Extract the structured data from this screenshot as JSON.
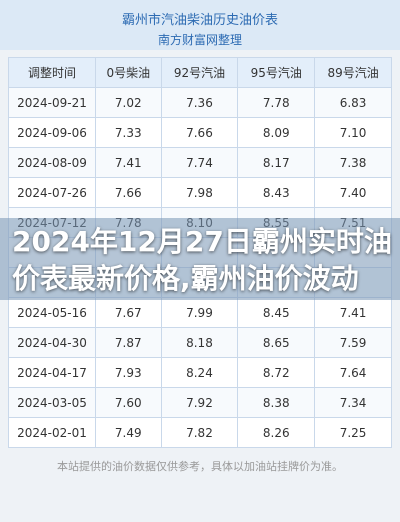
{
  "header": {
    "title": "霸州市汽油柴油历史油价表",
    "subtitle": "南方财富网整理"
  },
  "table": {
    "columns": [
      "调整时间",
      "0号柴油",
      "92号汽油",
      "95号汽油",
      "89号汽油"
    ],
    "rows_top": [
      [
        "2024-09-21",
        "7.02",
        "7.36",
        "7.78",
        "6.83"
      ],
      [
        "2024-09-06",
        "7.33",
        "7.66",
        "8.09",
        "7.10"
      ],
      [
        "2024-08-09",
        "7.41",
        "7.74",
        "8.17",
        "7.38"
      ],
      [
        "2024-07-26",
        "7.66",
        "7.98",
        "8.43",
        "7.40"
      ],
      [
        "2024-07-12",
        "7.78",
        "8.10",
        "8.55",
        "7.51"
      ]
    ],
    "rows_bottom": [
      [
        "2024-05-16",
        "7.67",
        "7.99",
        "8.45",
        "7.41"
      ],
      [
        "2024-04-30",
        "7.87",
        "8.18",
        "8.65",
        "7.59"
      ],
      [
        "2024-04-17",
        "7.93",
        "8.24",
        "8.72",
        "7.64"
      ],
      [
        "2024-03-05",
        "7.60",
        "7.92",
        "8.38",
        "7.34"
      ],
      [
        "2024-02-01",
        "7.49",
        "7.82",
        "8.26",
        "7.25"
      ]
    ]
  },
  "overlay_title": "2024年12月27日霸州实时油价表最新价格,霸州油价波动",
  "footer": "本站提供的油价数据仅供参考，具体以加油站挂牌价为准。"
}
